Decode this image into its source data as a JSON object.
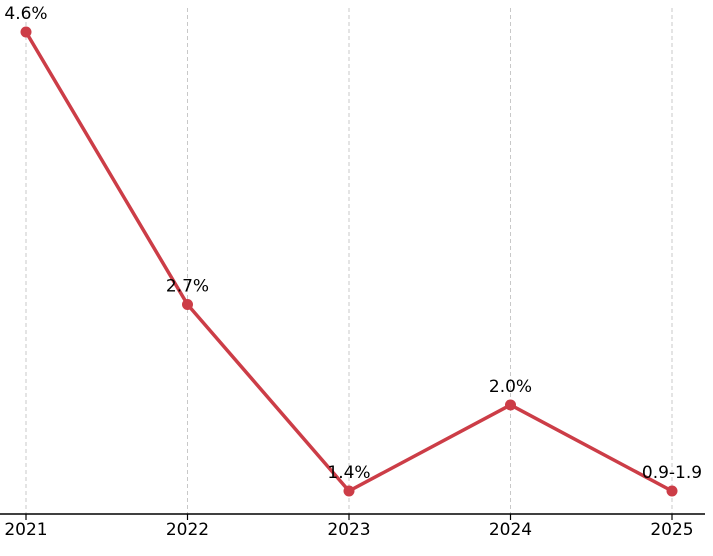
{
  "chart_data": {
    "type": "line",
    "title": "",
    "xlabel": "",
    "ylabel": "",
    "categories": [
      "2021",
      "2022",
      "2023",
      "2024",
      "2025"
    ],
    "series": [
      {
        "values": [
          4.6,
          2.7,
          1.4,
          2.0,
          1.4
        ],
        "labels": [
          "4.6%",
          "2.7%",
          "1.4%",
          "2.0%",
          "0.9-1.9"
        ],
        "color": "#cc3d47"
      }
    ],
    "ylim": [
      1.2,
      4.8
    ],
    "grid": "vertical dashed",
    "legend": "none"
  }
}
